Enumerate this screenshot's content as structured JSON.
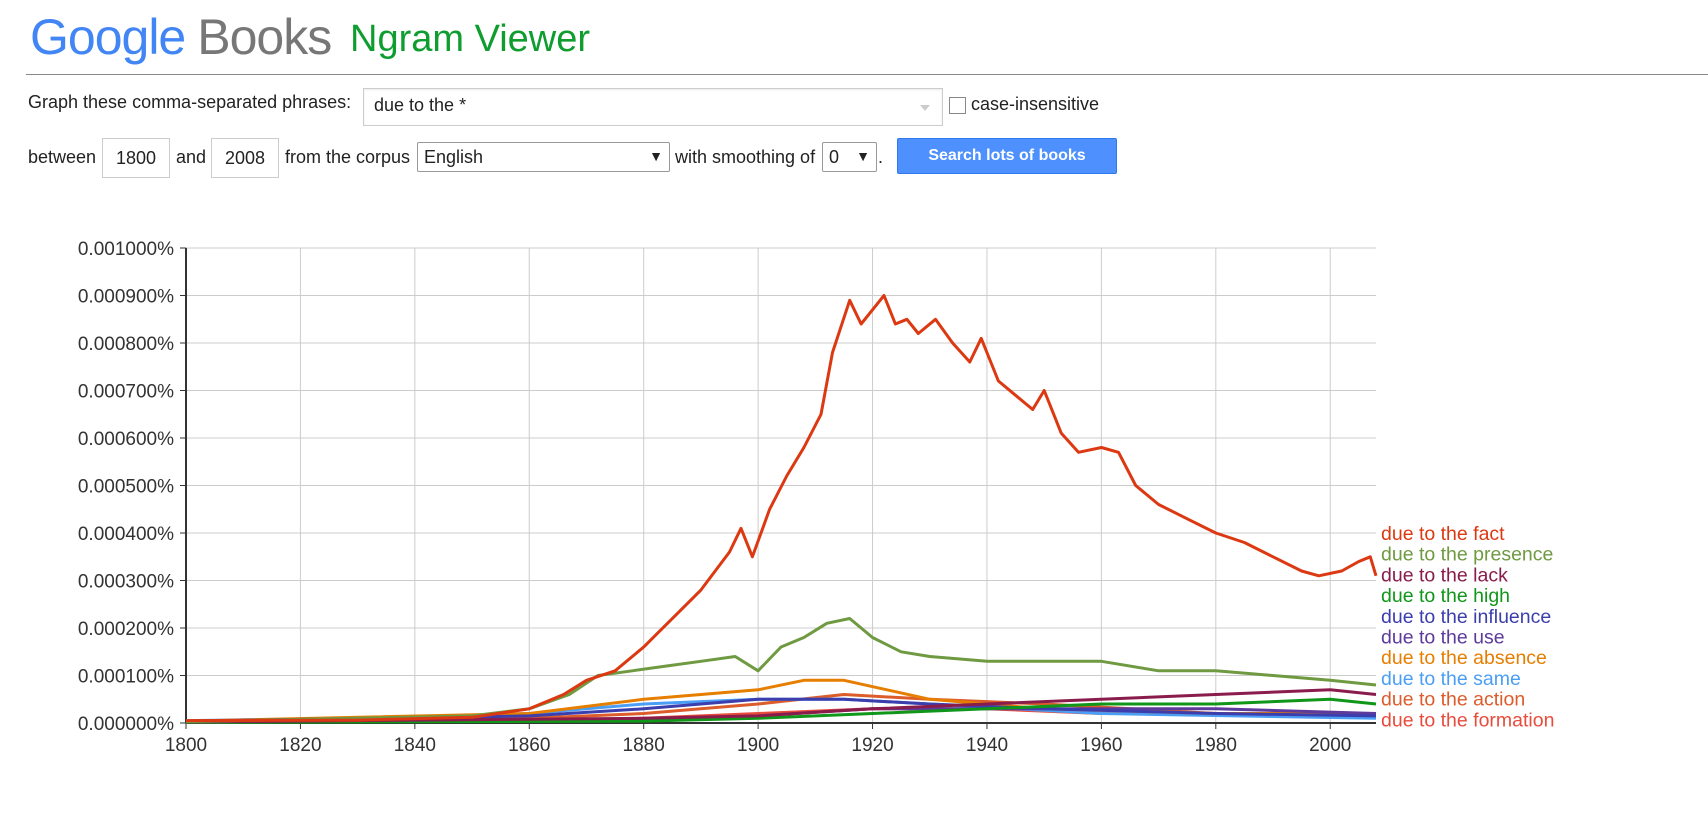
{
  "header": {
    "logo_google": "Google",
    "logo_books": "Books",
    "product": "Ngram Viewer"
  },
  "query": {
    "label": "Graph these comma-separated phrases:",
    "phrases": "due to the *",
    "case_label": "case-insensitive",
    "between": "between",
    "start_year": "1800",
    "and": "and",
    "end_year": "2008",
    "from_corpus": "from the corpus",
    "corpus": "English",
    "with_smoothing": "with smoothing of",
    "smoothing": "0",
    "period": ".",
    "search_button": "Search lots of books"
  },
  "chart_data": {
    "type": "line",
    "title": "",
    "xlabel": "",
    "ylabel": "",
    "xlim": [
      1800,
      2008
    ],
    "ylim": [
      0,
      0.001
    ],
    "grid": true,
    "legend_position": "right",
    "x_ticks": [
      "1800",
      "1820",
      "1840",
      "1860",
      "1880",
      "1900",
      "1920",
      "1940",
      "1960",
      "1980",
      "2000"
    ],
    "y_ticks": [
      "0.000000%",
      "0.000100%",
      "0.000200%",
      "0.000300%",
      "0.000400%",
      "0.000500%",
      "0.000600%",
      "0.000700%",
      "0.000800%",
      "0.000900%",
      "0.001000%"
    ],
    "series": [
      {
        "name": "due to the fact",
        "color": "#dc3912",
        "points": [
          [
            1800,
            5e-06
          ],
          [
            1830,
            6e-06
          ],
          [
            1850,
            1.2e-05
          ],
          [
            1860,
            3e-05
          ],
          [
            1866,
            6e-05
          ],
          [
            1870,
            9e-05
          ],
          [
            1875,
            0.00011
          ],
          [
            1880,
            0.00016
          ],
          [
            1885,
            0.00022
          ],
          [
            1890,
            0.00028
          ],
          [
            1895,
            0.00036
          ],
          [
            1897,
            0.00041
          ],
          [
            1899,
            0.00035
          ],
          [
            1902,
            0.00045
          ],
          [
            1905,
            0.00052
          ],
          [
            1908,
            0.00058
          ],
          [
            1911,
            0.00065
          ],
          [
            1913,
            0.00078
          ],
          [
            1916,
            0.00089
          ],
          [
            1918,
            0.00084
          ],
          [
            1920,
            0.00087
          ],
          [
            1922,
            0.0009
          ],
          [
            1924,
            0.00084
          ],
          [
            1926,
            0.00085
          ],
          [
            1928,
            0.00082
          ],
          [
            1931,
            0.00085
          ],
          [
            1934,
            0.0008
          ],
          [
            1937,
            0.00076
          ],
          [
            1939,
            0.00081
          ],
          [
            1942,
            0.00072
          ],
          [
            1945,
            0.00069
          ],
          [
            1948,
            0.00066
          ],
          [
            1950,
            0.0007
          ],
          [
            1953,
            0.00061
          ],
          [
            1956,
            0.00057
          ],
          [
            1960,
            0.00058
          ],
          [
            1963,
            0.00057
          ],
          [
            1966,
            0.0005
          ],
          [
            1970,
            0.00046
          ],
          [
            1975,
            0.00043
          ],
          [
            1980,
            0.0004
          ],
          [
            1985,
            0.00038
          ],
          [
            1990,
            0.00035
          ],
          [
            1995,
            0.00032
          ],
          [
            1998,
            0.00031
          ],
          [
            2002,
            0.00032
          ],
          [
            2005,
            0.00034
          ],
          [
            2007,
            0.00035
          ],
          [
            2008,
            0.00031
          ]
        ]
      },
      {
        "name": "due to the presence",
        "color": "#6f9a41",
        "points": [
          [
            1800,
            3e-06
          ],
          [
            1850,
            1.5e-05
          ],
          [
            1860,
            3e-05
          ],
          [
            1867,
            6e-05
          ],
          [
            1872,
            0.0001
          ],
          [
            1878,
            0.00011
          ],
          [
            1884,
            0.00012
          ],
          [
            1890,
            0.00013
          ],
          [
            1896,
            0.00014
          ],
          [
            1900,
            0.00011
          ],
          [
            1904,
            0.00016
          ],
          [
            1908,
            0.00018
          ],
          [
            1912,
            0.00021
          ],
          [
            1916,
            0.00022
          ],
          [
            1920,
            0.00018
          ],
          [
            1925,
            0.00015
          ],
          [
            1930,
            0.00014
          ],
          [
            1940,
            0.00013
          ],
          [
            1950,
            0.00013
          ],
          [
            1960,
            0.00013
          ],
          [
            1970,
            0.00011
          ],
          [
            1980,
            0.00011
          ],
          [
            1990,
            0.0001
          ],
          [
            2000,
            9e-05
          ],
          [
            2008,
            8e-05
          ]
        ]
      },
      {
        "name": "due to the lack",
        "color": "#8a1c4c",
        "points": [
          [
            1800,
            2e-06
          ],
          [
            1860,
            8e-06
          ],
          [
            1880,
            1e-05
          ],
          [
            1900,
            1.5e-05
          ],
          [
            1920,
            3e-05
          ],
          [
            1940,
            4e-05
          ],
          [
            1960,
            5e-05
          ],
          [
            1980,
            6e-05
          ],
          [
            2000,
            7e-05
          ],
          [
            2008,
            6e-05
          ]
        ]
      },
      {
        "name": "due to the high",
        "color": "#109618",
        "points": [
          [
            1800,
            1e-06
          ],
          [
            1880,
            4e-06
          ],
          [
            1900,
            1e-05
          ],
          [
            1920,
            2e-05
          ],
          [
            1940,
            3e-05
          ],
          [
            1960,
            4e-05
          ],
          [
            1980,
            4e-05
          ],
          [
            2000,
            5e-05
          ],
          [
            2008,
            4e-05
          ]
        ]
      },
      {
        "name": "due to the influence",
        "color": "#3b3eac",
        "points": [
          [
            1800,
            4e-06
          ],
          [
            1860,
            1.5e-05
          ],
          [
            1880,
            3e-05
          ],
          [
            1900,
            5e-05
          ],
          [
            1915,
            5e-05
          ],
          [
            1930,
            4e-05
          ],
          [
            1950,
            3e-05
          ],
          [
            1980,
            2e-05
          ],
          [
            2008,
            1.5e-05
          ]
        ]
      },
      {
        "name": "due to the use",
        "color": "#5d3a9b",
        "points": [
          [
            1800,
            1e-06
          ],
          [
            1880,
            6e-06
          ],
          [
            1900,
            1.5e-05
          ],
          [
            1920,
            3e-05
          ],
          [
            1940,
            3e-05
          ],
          [
            1960,
            3e-05
          ],
          [
            1980,
            3e-05
          ],
          [
            2008,
            2e-05
          ]
        ]
      },
      {
        "name": "due to the absence",
        "color": "#e67e00",
        "points": [
          [
            1800,
            4e-06
          ],
          [
            1860,
            2e-05
          ],
          [
            1880,
            5e-05
          ],
          [
            1900,
            7e-05
          ],
          [
            1908,
            9e-05
          ],
          [
            1915,
            9e-05
          ],
          [
            1930,
            5e-05
          ],
          [
            1950,
            3e-05
          ],
          [
            1980,
            2e-05
          ],
          [
            2008,
            2e-05
          ]
        ]
      },
      {
        "name": "due to the same",
        "color": "#4b9ef5",
        "points": [
          [
            1800,
            5e-06
          ],
          [
            1832,
            1e-05
          ],
          [
            1860,
            2e-05
          ],
          [
            1880,
            4e-05
          ],
          [
            1900,
            5e-05
          ],
          [
            1915,
            5e-05
          ],
          [
            1930,
            4e-05
          ],
          [
            1960,
            2e-05
          ],
          [
            2008,
            1e-05
          ]
        ]
      },
      {
        "name": "due to the action",
        "color": "#dd5c2b",
        "points": [
          [
            1800,
            3e-06
          ],
          [
            1860,
            1e-05
          ],
          [
            1880,
            2e-05
          ],
          [
            1900,
            4e-05
          ],
          [
            1915,
            6e-05
          ],
          [
            1930,
            5e-05
          ],
          [
            1950,
            4e-05
          ],
          [
            1980,
            2e-05
          ],
          [
            2008,
            2e-05
          ]
        ]
      },
      {
        "name": "due to the formation",
        "color": "#e84c3d",
        "points": [
          [
            1800,
            2e-06
          ],
          [
            1860,
            5e-06
          ],
          [
            1880,
            1e-05
          ],
          [
            1900,
            2e-05
          ],
          [
            1920,
            3e-05
          ],
          [
            1940,
            3e-05
          ],
          [
            1960,
            2e-05
          ],
          [
            1980,
            2e-05
          ],
          [
            2008,
            1.2e-05
          ]
        ]
      }
    ]
  }
}
